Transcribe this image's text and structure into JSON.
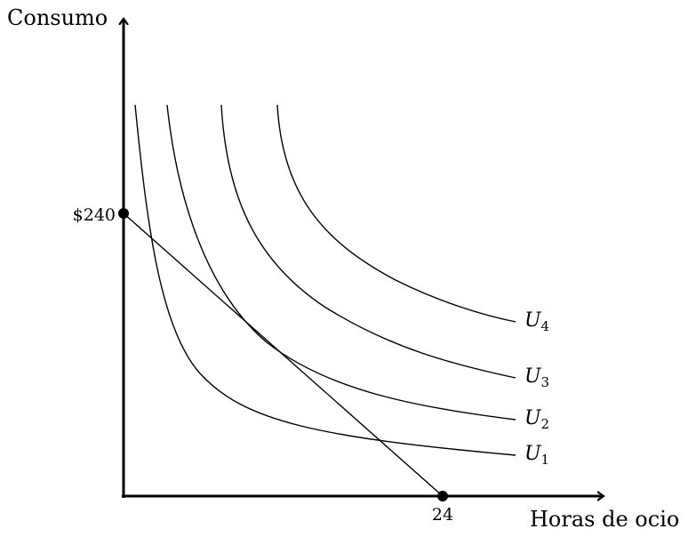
{
  "axes": {
    "y_label": "Consumo",
    "x_label": "Horas de ocio"
  },
  "budget_line": {
    "y_intercept_label": "$240",
    "x_intercept_label": "24"
  },
  "curves": [
    {
      "name": "U",
      "sub": "1"
    },
    {
      "name": "U",
      "sub": "2"
    },
    {
      "name": "U",
      "sub": "3"
    },
    {
      "name": "U",
      "sub": "4"
    }
  ]
}
